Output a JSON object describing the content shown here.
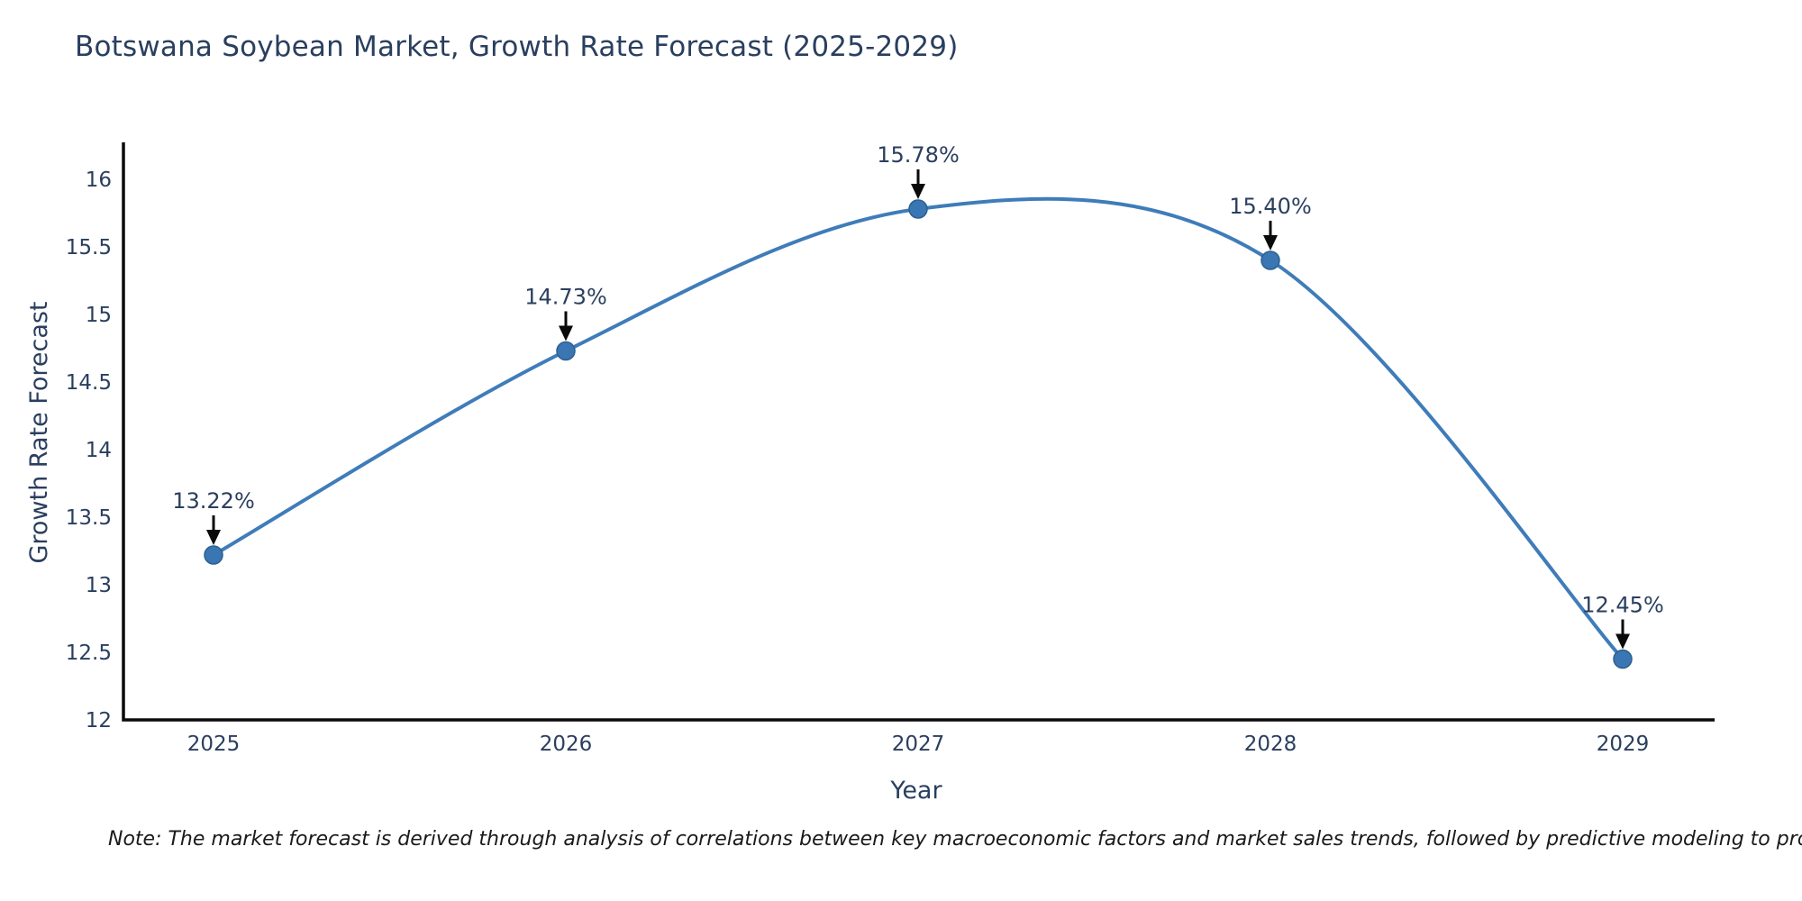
{
  "title": "Botswana Soybean Market, Growth Rate Forecast (2025-2029)",
  "note": "Note: The market forecast is derived through analysis of correlations between key macroeconomic factors and market sales trends, followed by predictive modeling to project future sal",
  "chart_data": {
    "type": "line",
    "title": "Botswana Soybean Market, Growth Rate Forecast (2025-2029)",
    "x": [
      2025,
      2026,
      2027,
      2028,
      2029
    ],
    "values": [
      13.22,
      14.73,
      15.78,
      15.4,
      12.45
    ],
    "point_labels": [
      "13.22%",
      "14.73%",
      "15.78%",
      "15.40%",
      "12.45%"
    ],
    "xticks": [
      "2025",
      "2026",
      "2027",
      "2028",
      "2029"
    ],
    "yticks": [
      "16",
      "15.5",
      "15",
      "14.5",
      "14",
      "13.5",
      "13",
      "12.5",
      "12"
    ],
    "ytick_values": [
      16,
      15.5,
      15,
      14.5,
      14,
      13.5,
      13,
      12.5,
      12
    ],
    "xlabel": "Year",
    "ylabel": "Growth Rate Forecast",
    "ylim": [
      12,
      16
    ],
    "grid": false,
    "legend_position": "none",
    "line_shape": "spline",
    "line_color": "#3f7cb9",
    "marker_color": "#3a76b3",
    "marker_edge_color": "#2d608f",
    "axis_color": "#0a0a0a",
    "arrow_color": "#0a0a0a",
    "text_color": "#2a3f5f",
    "background_color": "#ffffff"
  }
}
